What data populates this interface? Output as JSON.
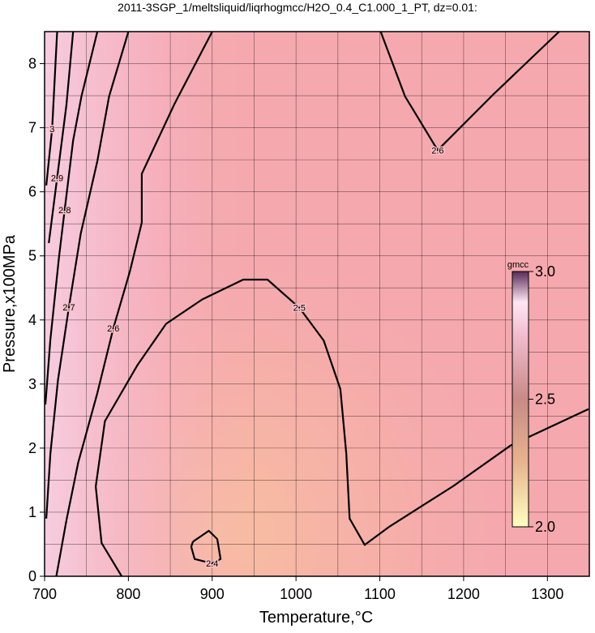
{
  "chart_data": {
    "type": "contour",
    "title": "2011-3SGP_1/meltsliquid/liqrhogmcc/H2O_0.4_C1.000_1_PT, dz=0.01:",
    "xlabel": "Temperature,°C",
    "ylabel": "Pressure,x100MPa",
    "xlim": [
      700,
      1350
    ],
    "ylim": [
      0,
      8.5
    ],
    "xticks": [
      700,
      800,
      900,
      1000,
      1100,
      1200,
      1300
    ],
    "yticks": [
      0,
      1,
      2,
      3,
      4,
      5,
      6,
      7,
      8
    ],
    "xgrid": [
      750,
      850,
      950,
      1050,
      1150,
      1250
    ],
    "ygrid": [
      0.5,
      1.5,
      2.5,
      3.5,
      4.5,
      5.5,
      6.5,
      7.5
    ],
    "grid": true,
    "contours": [
      {
        "level": 2.5,
        "x": [
          792,
          768,
          761,
          772,
          811,
          845,
          888,
          937,
          966,
          1004,
          1033,
          1053,
          1060,
          1064,
          1082,
          1111,
          1188,
          1256,
          1349
        ],
        "y": [
          0,
          0.52,
          1.4,
          2.42,
          3.3,
          3.94,
          4.32,
          4.63,
          4.63,
          4.19,
          3.68,
          2.92,
          1.91,
          0.9,
          0.49,
          0.77,
          1.41,
          2.04,
          2.61
        ]
      },
      {
        "level": 2.4,
        "x": [
          877,
          896,
          906,
          910,
          900,
          879,
          875,
          877
        ],
        "y": [
          0.54,
          0.71,
          0.58,
          0.27,
          0.2,
          0.27,
          0.46,
          0.54
        ]
      },
      {
        "level": 2.6,
        "x": [
          900,
          855,
          816,
          816,
          802,
          782,
          763,
          740,
          726,
          714
        ],
        "y": [
          8.5,
          7.37,
          6.28,
          5.52,
          4.77,
          3.87,
          2.86,
          1.77,
          0.87,
          0
        ],
        "note_free": null
      },
      {
        "level": 2.6,
        "x": [
          1101,
          1130,
          1169,
          1237,
          1314
        ],
        "y": [
          8.5,
          7.49,
          6.65,
          7.54,
          8.5
        ]
      },
      {
        "level": 2.7,
        "x": [
          800,
          777,
          763,
          743,
          729,
          716,
          707,
          702
        ],
        "y": [
          8.5,
          7.49,
          6.48,
          5.34,
          4.2,
          3.06,
          1.92,
          0.9
        ]
      },
      {
        "level": 2.8,
        "x": [
          763,
          744,
          734,
          724,
          717,
          707,
          701
        ],
        "y": [
          8.5,
          7.49,
          6.8,
          5.72,
          4.96,
          3.7,
          2.68
        ]
      },
      {
        "level": 2.9,
        "x": [
          734,
          726,
          715,
          705
        ],
        "y": [
          8.5,
          7.35,
          6.22,
          5.2
        ]
      },
      {
        "level": 3,
        "x": [
          715,
          709,
          702
        ],
        "y": [
          8.5,
          6.98,
          6.1
        ]
      }
    ],
    "colorbar": {
      "label": "gmcc",
      "lim": [
        2.0,
        3.0
      ],
      "ticks": [
        {
          "value": 2.0,
          "label": "2.0"
        },
        {
          "value": 2.5,
          "label": "2.5"
        },
        {
          "value": 3.0,
          "label": "3.0"
        }
      ]
    }
  }
}
